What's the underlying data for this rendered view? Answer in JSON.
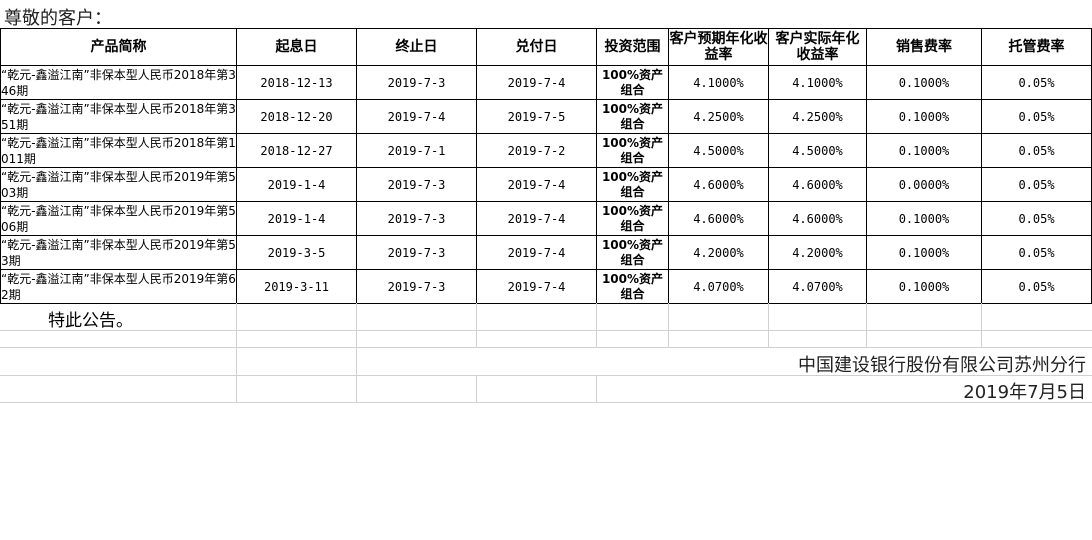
{
  "greeting": "尊敬的客户：",
  "headers": [
    "产品简称",
    "起息日",
    "终止日",
    "兑付日",
    "投资范围",
    "客户预期年化收益率",
    "客户实际年化收益率",
    "销售费率",
    "托管费率"
  ],
  "rows": [
    {
      "name": "“乾元-鑫溢江南”非保本型人民币2018年第346期",
      "start": "2018-12-13",
      "end": "2019-7-3",
      "pay": "2019-7-4",
      "scope": "100%资产组合",
      "expected": "4.1000%",
      "actual": "4.1000%",
      "sales_fee": "0.1000%",
      "custody_fee": "0.05%"
    },
    {
      "name": "“乾元-鑫溢江南”非保本型人民币2018年第351期",
      "start": "2018-12-20",
      "end": "2019-7-4",
      "pay": "2019-7-5",
      "scope": "100%资产组合",
      "expected": "4.2500%",
      "actual": "4.2500%",
      "sales_fee": "0.1000%",
      "custody_fee": "0.05%"
    },
    {
      "name": "“乾元-鑫溢江南”非保本型人民币2018年第1011期",
      "start": "2018-12-27",
      "end": "2019-7-1",
      "pay": "2019-7-2",
      "scope": "100%资产组合",
      "expected": "4.5000%",
      "actual": "4.5000%",
      "sales_fee": "0.1000%",
      "custody_fee": "0.05%"
    },
    {
      "name": "“乾元-鑫溢江南”非保本型人民币2019年第503期",
      "start": "2019-1-4",
      "end": "2019-7-3",
      "pay": "2019-7-4",
      "scope": "100%资产组合",
      "expected": "4.6000%",
      "actual": "4.6000%",
      "sales_fee": "0.0000%",
      "custody_fee": "0.05%"
    },
    {
      "name": "“乾元-鑫溢江南”非保本型人民币2019年第506期",
      "start": "2019-1-4",
      "end": "2019-7-3",
      "pay": "2019-7-4",
      "scope": "100%资产组合",
      "expected": "4.6000%",
      "actual": "4.6000%",
      "sales_fee": "0.1000%",
      "custody_fee": "0.05%"
    },
    {
      "name": "“乾元-鑫溢江南”非保本型人民币2019年第53期",
      "start": "2019-3-5",
      "end": "2019-7-3",
      "pay": "2019-7-4",
      "scope": "100%资产组合",
      "expected": "4.2000%",
      "actual": "4.2000%",
      "sales_fee": "0.1000%",
      "custody_fee": "0.05%"
    },
    {
      "name": "“乾元-鑫溢江南”非保本型人民币2019年第62期",
      "start": "2019-3-11",
      "end": "2019-7-3",
      "pay": "2019-7-4",
      "scope": "100%资产组合",
      "expected": "4.0700%",
      "actual": "4.0700%",
      "sales_fee": "0.1000%",
      "custody_fee": "0.05%"
    }
  ],
  "notice": "特此公告。",
  "bank": "中国建设银行股份有限公司苏州分行",
  "date": "2019年7月5日"
}
